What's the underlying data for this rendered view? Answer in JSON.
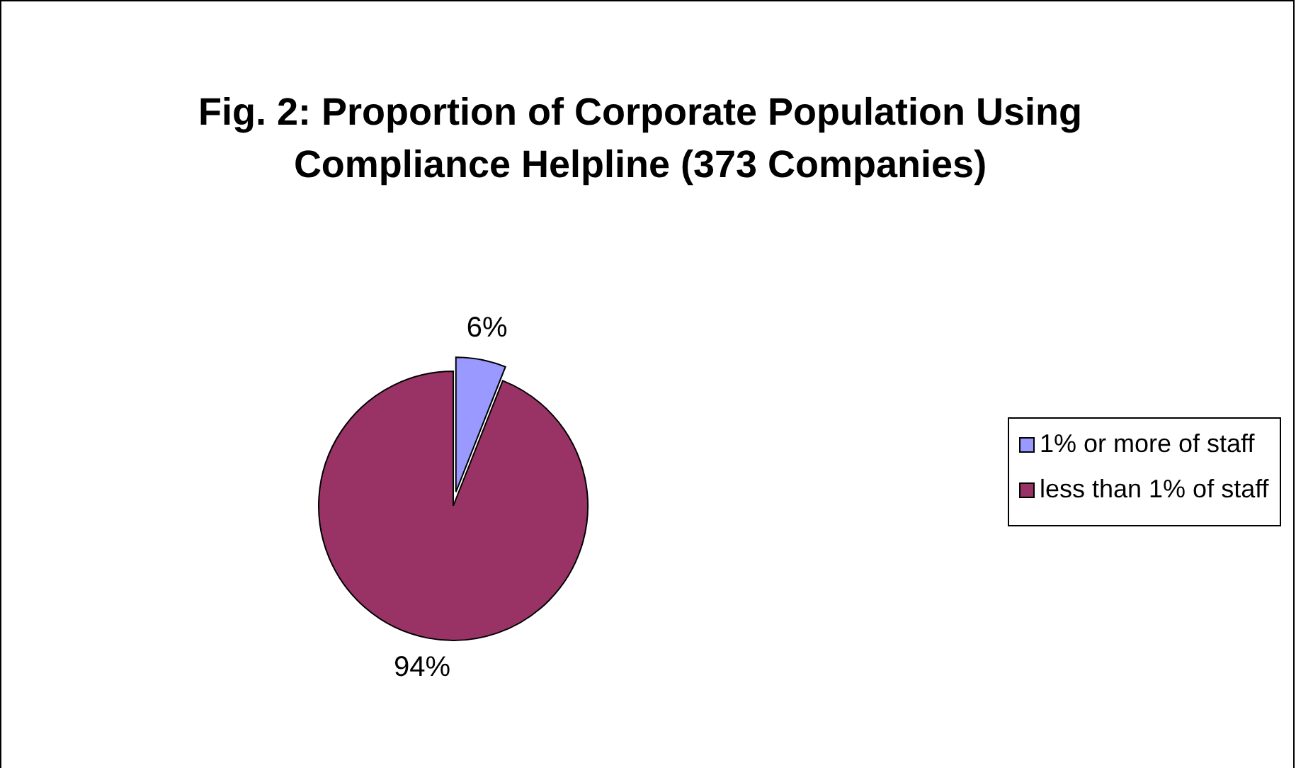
{
  "chart_data": {
    "type": "pie",
    "title": "Fig. 2:  Proportion of Corporate Population Using Compliance Helpline (373 Companies)",
    "categories": [
      "1% or more of staff",
      "less than 1% of staff"
    ],
    "values": [
      6,
      94
    ],
    "value_labels": [
      "6%",
      "94%"
    ],
    "colors": [
      "#9999ff",
      "#993366"
    ],
    "legend": "right"
  }
}
